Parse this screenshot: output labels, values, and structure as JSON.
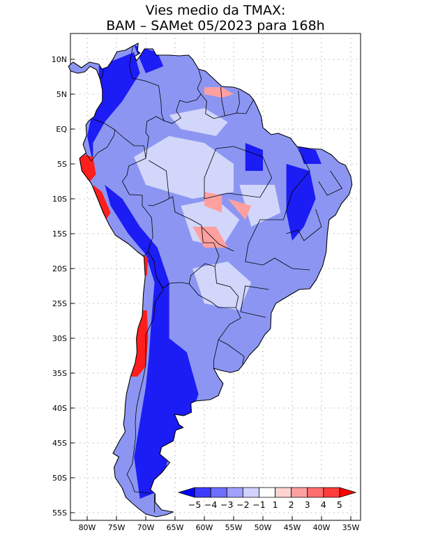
{
  "title": {
    "line1": "Vies medio da TMAX:",
    "line2": "BAM – SAMet 05/2023  para 168h"
  },
  "map": {
    "region": "South America",
    "variable": "TMAX bias",
    "lat_labels": [
      "10N",
      "5N",
      "EQ",
      "5S",
      "10S",
      "15S",
      "20S",
      "25S",
      "30S",
      "35S",
      "40S",
      "45S",
      "50S",
      "55S"
    ],
    "lon_labels": [
      "80W",
      "75W",
      "70W",
      "65W",
      "60W",
      "55W",
      "50W",
      "45W",
      "40W",
      "35W"
    ],
    "lat_range": [
      -55.5,
      13
    ],
    "lon_range": [
      -83,
      -34
    ]
  },
  "colorbar": {
    "labels": [
      "−5",
      "−4",
      "−3",
      "−2",
      "−1",
      "1",
      "2",
      "3",
      "4",
      "5"
    ],
    "colors": [
      "#0000ff",
      "#3c3cff",
      "#6e6eff",
      "#a0a0ff",
      "#d2d2ff",
      "#ffffff",
      "#ffd2d2",
      "#ffa0a0",
      "#ff6e6e",
      "#ff3c3c",
      "#ff0000"
    ]
  },
  "colors": {
    "land_base": "#8c96f2",
    "strong_negative": "#1c1cf4",
    "weak_negative": "#d2d6fa",
    "positive": "#ffa0a0",
    "strong_positive": "#ff1e1e"
  }
}
